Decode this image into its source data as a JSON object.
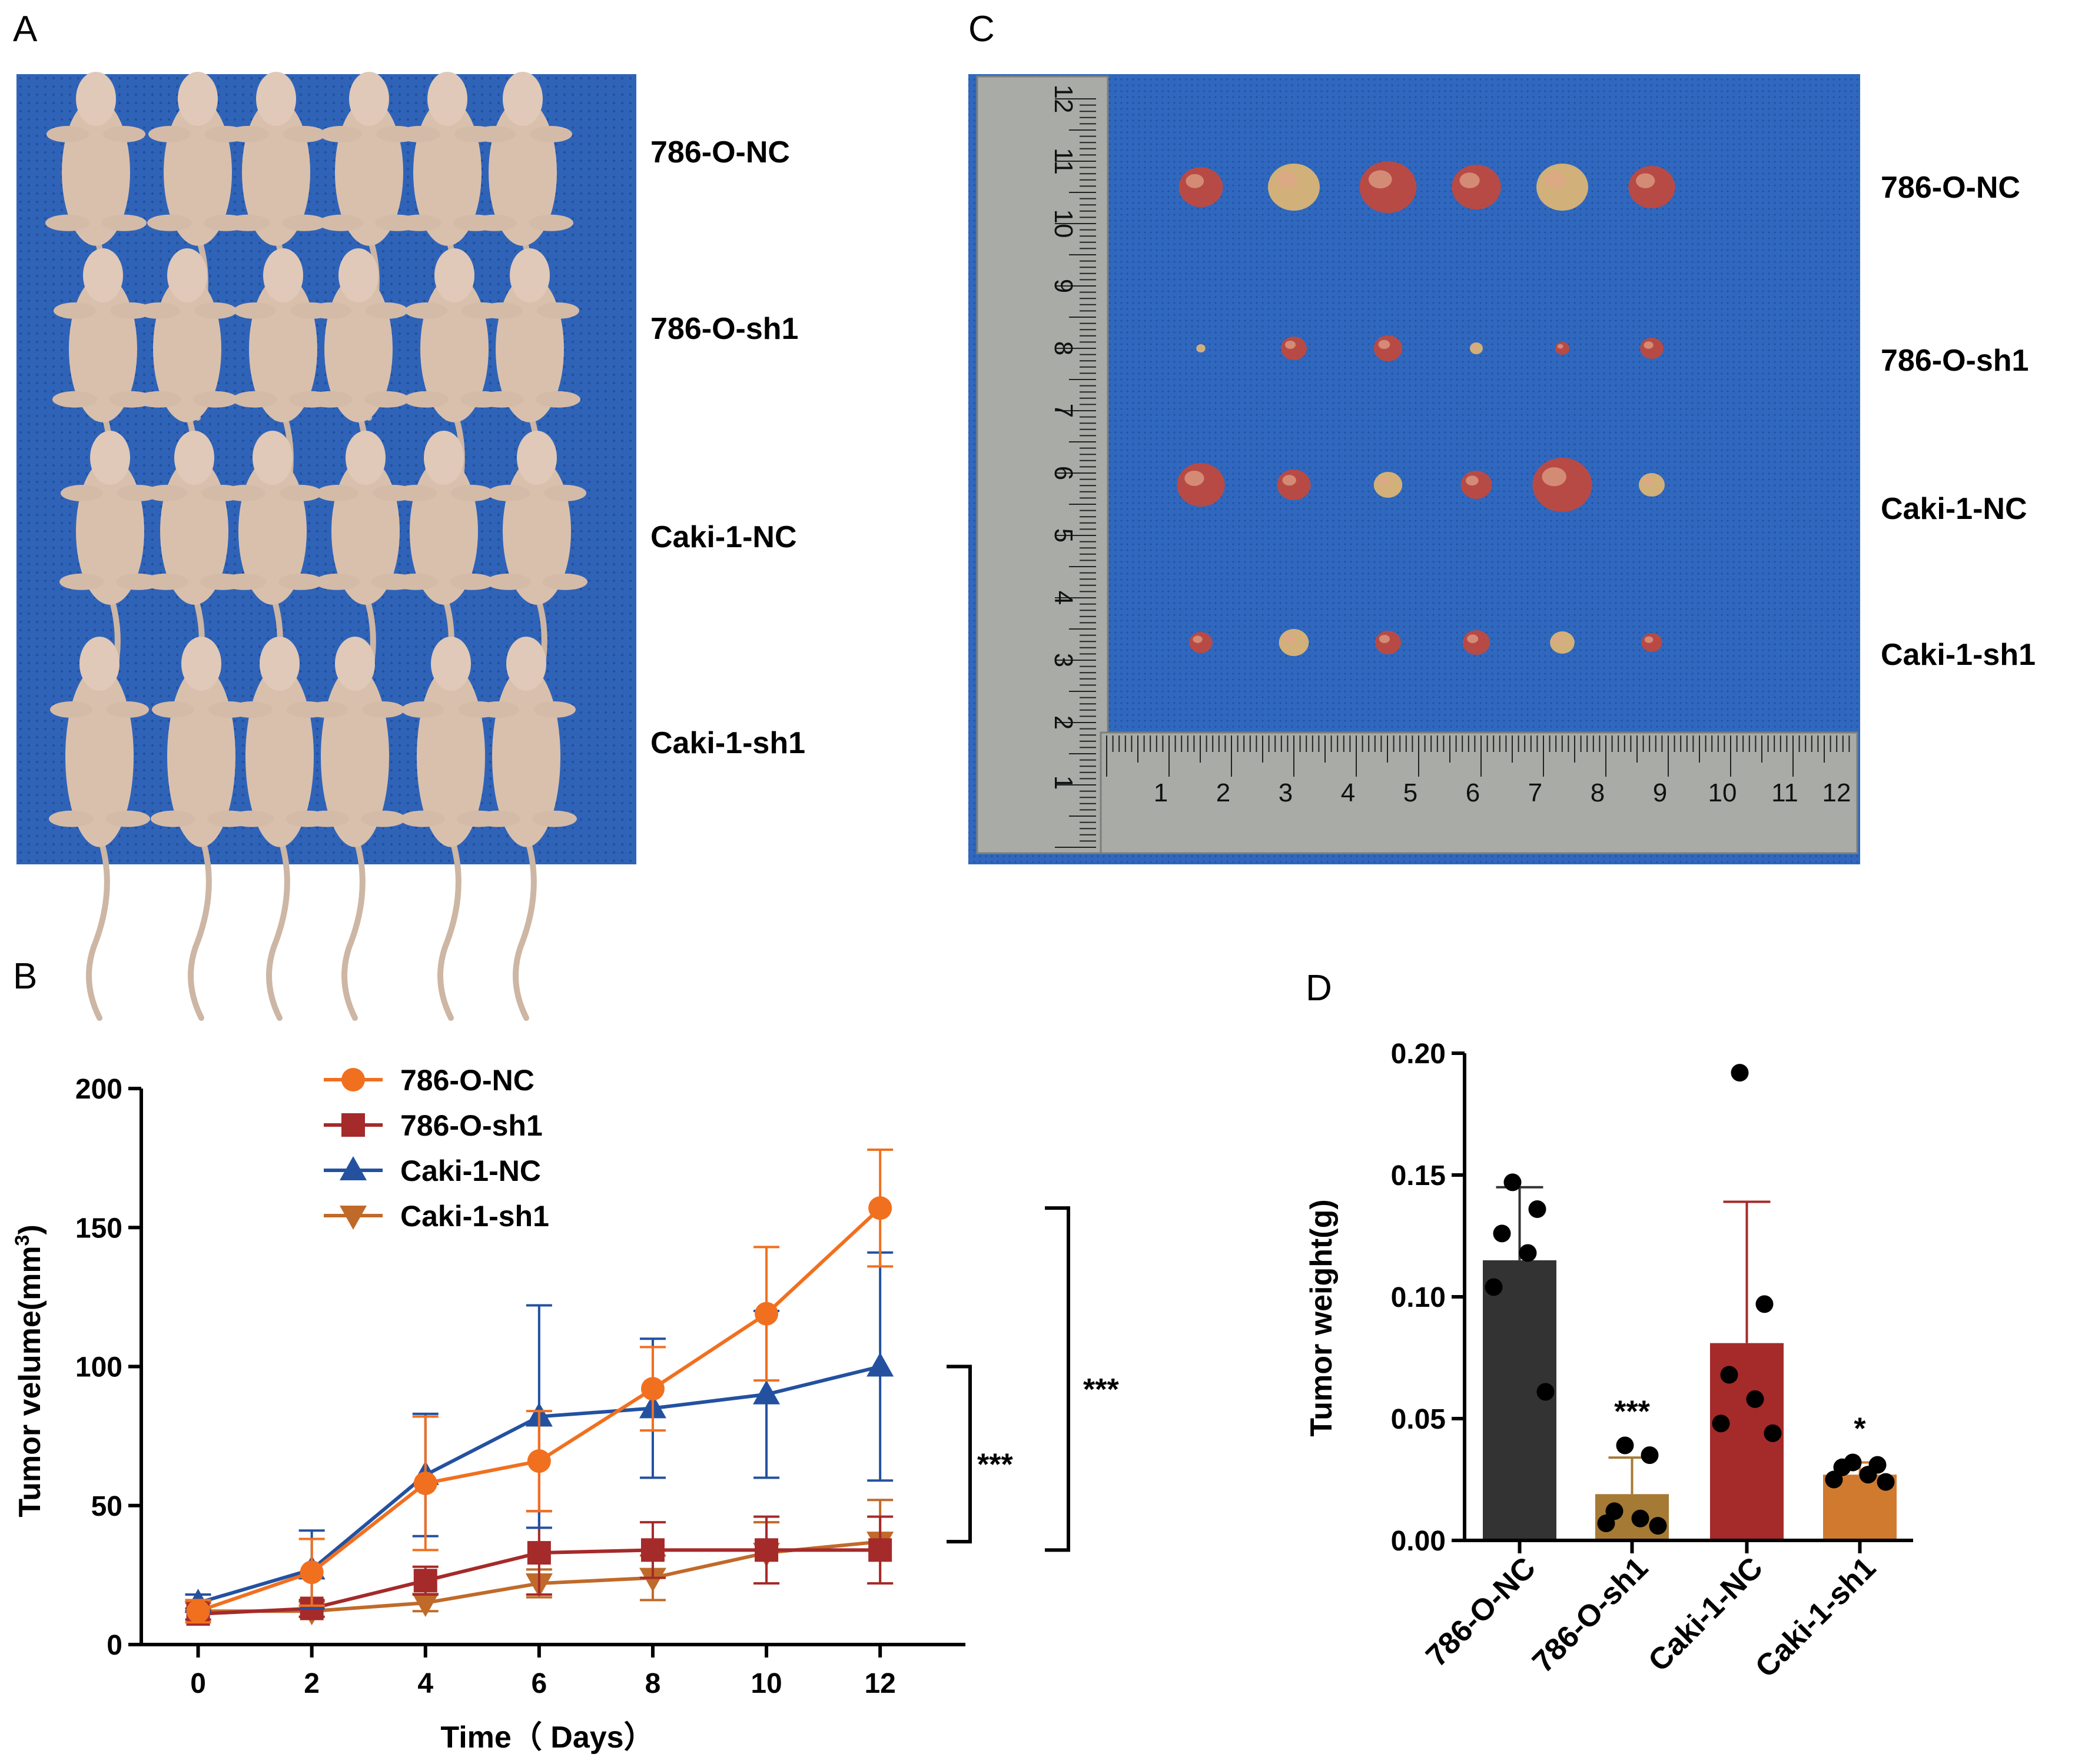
{
  "panels": {
    "a": {
      "letter": "A",
      "rows": [
        "786-O-NC",
        "786-O-sh1",
        "Caki-1-NC",
        "Caki-1-sh1"
      ]
    },
    "c": {
      "letter": "C",
      "rows": [
        "786-O-NC",
        "786-O-sh1",
        "Caki-1-NC",
        "Caki-1-sh1"
      ],
      "ruler_numbers": [
        "1",
        "2",
        "3",
        "4",
        "5",
        "6",
        "7",
        "8",
        "9",
        "10",
        "11",
        "12"
      ]
    },
    "b": {
      "letter": "B"
    },
    "d": {
      "letter": "D"
    }
  },
  "colors": {
    "bg_blue": "#2f63b8",
    "bg_blue_dark": "#24509a",
    "skin": "#d9c0ad",
    "ruler": "#a9aba6",
    "tumor_red": "#b84a45",
    "tumor_pale": "#d2b07a"
  },
  "chart_data": [
    {
      "type": "line",
      "title": "",
      "xlabel": "Time（ Days）",
      "ylabel": "Tumor velume(mm",
      "ylabel_sup": "3",
      "ylabel_close": ")",
      "x": [
        0,
        2,
        4,
        6,
        8,
        10,
        12
      ],
      "xticks": [
        "0",
        "2",
        "4",
        "6",
        "8",
        "10",
        "12"
      ],
      "yticks": [
        "0",
        "50",
        "100",
        "150",
        "200"
      ],
      "xlim": [
        -1,
        13.5
      ],
      "ylim": [
        0,
        200
      ],
      "legend_position": "top-left",
      "series": [
        {
          "name": "786-O-NC",
          "color": "#f07020",
          "marker": "circle",
          "values": [
            12,
            26,
            58,
            66,
            92,
            119,
            157
          ],
          "errors": [
            4,
            12,
            24,
            18,
            15,
            24,
            21
          ]
        },
        {
          "name": "786-O-sh1",
          "color": "#a52a2a",
          "marker": "square",
          "values": [
            11,
            13,
            23,
            33,
            34,
            34,
            34
          ],
          "errors": [
            2,
            3,
            5,
            15,
            10,
            12,
            12
          ]
        },
        {
          "name": "Caki-1-NC",
          "color": "#2351a0",
          "marker": "triangle-up",
          "values": [
            15,
            27,
            61,
            82,
            85,
            90,
            100
          ],
          "errors": [
            3,
            14,
            22,
            40,
            25,
            30,
            41
          ]
        },
        {
          "name": "Caki-1-sh1",
          "color": "#c06a2a",
          "marker": "triangle-down",
          "values": [
            12,
            12,
            15,
            22,
            24,
            33,
            37
          ],
          "errors": [
            3,
            2,
            3,
            5,
            8,
            11,
            15
          ]
        }
      ],
      "significance": [
        {
          "label": "***",
          "from": 37,
          "to": 100
        },
        {
          "label": "***",
          "from": 34,
          "to": 157
        }
      ]
    },
    {
      "type": "bar",
      "title": "",
      "xlabel": "",
      "ylabel": "Tumor weight(g)",
      "categories": [
        "786-O-NC",
        "786-O-sh1",
        "Caki-1-NC",
        "Caki-1-sh1"
      ],
      "values": [
        0.115,
        0.019,
        0.081,
        0.027
      ],
      "errors": [
        0.03,
        0.015,
        0.058,
        0.005
      ],
      "colors": [
        "#333333",
        "#a57a35",
        "#a52a2a",
        "#d07a30"
      ],
      "points": [
        [
          0.147,
          0.136,
          0.126,
          0.118,
          0.104,
          0.061
        ],
        [
          0.039,
          0.035,
          0.012,
          0.009,
          0.007,
          0.006
        ],
        [
          0.192,
          0.097,
          0.068,
          0.058,
          0.048,
          0.044
        ],
        [
          0.032,
          0.031,
          0.03,
          0.027,
          0.025,
          0.024
        ]
      ],
      "significance": [
        "",
        "***",
        "",
        "*"
      ],
      "yticks": [
        "0.00",
        "0.05",
        "0.10",
        "0.15",
        "0.20"
      ],
      "ylim": [
        0,
        0.2
      ]
    }
  ]
}
